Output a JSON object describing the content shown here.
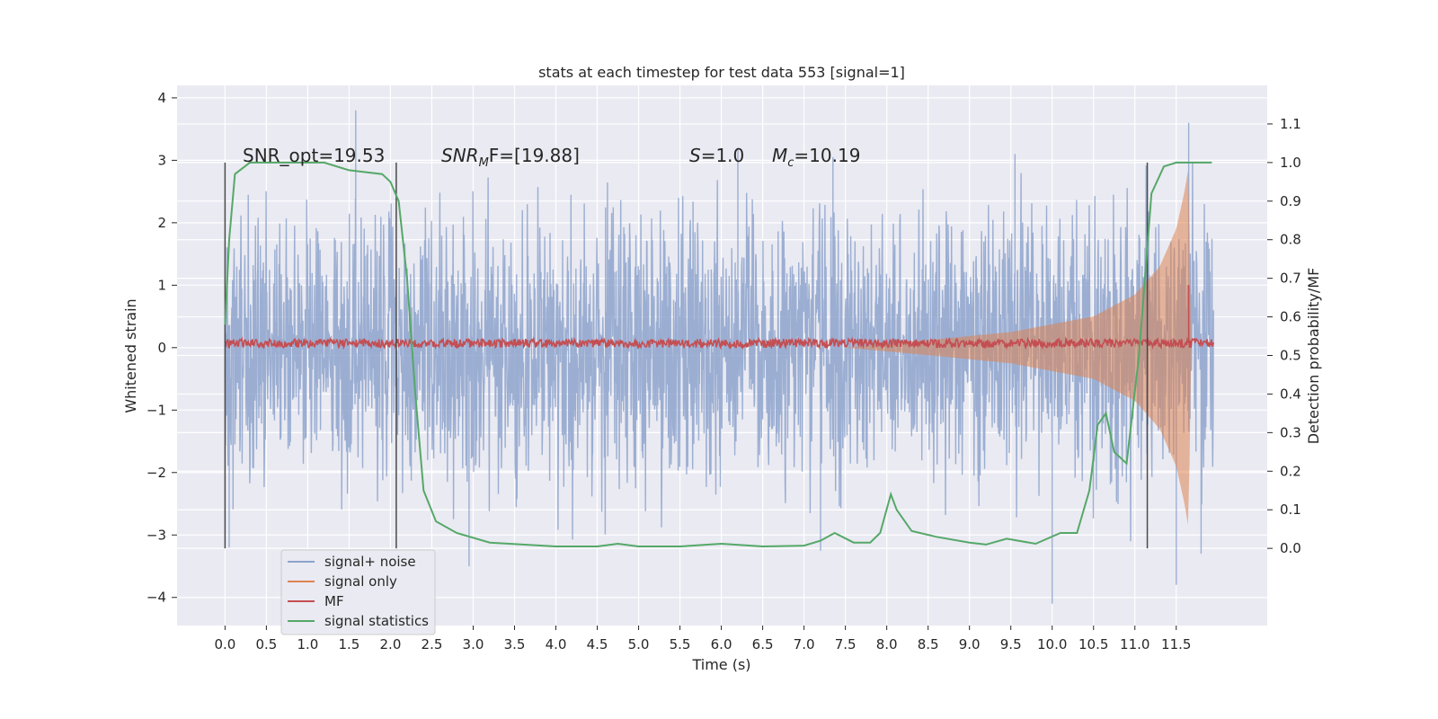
{
  "chart_data": {
    "type": "line",
    "title": "stats at each timestep for test data 553 [signal=1]",
    "xlabel": "Time (s)",
    "ylabel": "Whitened strain",
    "ylabel_right": "Detection probability/MF",
    "xlim": [
      -0.58,
      12.6
    ],
    "ylim": [
      -4.45,
      4.2
    ],
    "ylim_right": [
      -0.2,
      1.2
    ],
    "grid": true,
    "x_ticks": [
      "0.0",
      "0.5",
      "1.0",
      "1.5",
      "2.0",
      "2.5",
      "3.0",
      "3.5",
      "4.0",
      "4.5",
      "5.0",
      "5.5",
      "6.0",
      "6.5",
      "7.0",
      "7.5",
      "8.0",
      "8.5",
      "9.0",
      "9.5",
      "10.0",
      "10.5",
      "11.0",
      "11.5"
    ],
    "y_ticks": [
      "4",
      "3",
      "2",
      "1",
      "0",
      "−1",
      "−2",
      "−3",
      "−4"
    ],
    "y_ticks_right": [
      "1.1",
      "1.0",
      "0.9",
      "0.8",
      "0.7",
      "0.6",
      "0.5",
      "0.4",
      "0.3",
      "0.2",
      "0.1",
      "0.0"
    ],
    "annotations": {
      "snr_opt": "SNR_opt=19.53",
      "snr_mf_base": "SNR",
      "snr_mf_sub": "M",
      "snr_mf_rest": "F=[19.88]",
      "s_italic": "S",
      "s_value": "=1.0",
      "mc_base": "M",
      "mc_sub": "c",
      "mc_value": "=10.19"
    },
    "vertical_lines_x": [
      0.0,
      2.07,
      11.15
    ],
    "legend_placement": "lower-left",
    "series": [
      {
        "name": "signal+ noise",
        "color": "#8da3cd",
        "x_range": [
          0.0,
          11.95
        ],
        "envelope_typical": [
          -2.3,
          2.3
        ],
        "spikes": [
          [
            1.58,
            3.8
          ],
          [
            0.05,
            -3.2
          ],
          [
            2.95,
            -3.5
          ],
          [
            6.2,
            3.2
          ],
          [
            7.2,
            -3.25
          ],
          [
            7.35,
            3.05
          ],
          [
            9.55,
            3.1
          ],
          [
            10.0,
            -4.1
          ],
          [
            11.5,
            -3.8
          ],
          [
            11.65,
            3.6
          ],
          [
            11.8,
            -3.3
          ]
        ]
      },
      {
        "name": "signal only",
        "color": "#dd8452",
        "x_range": [
          7.5,
          11.68
        ],
        "amplitude_points": [
          [
            7.5,
            0.0
          ],
          [
            8.5,
            0.12
          ],
          [
            9.5,
            0.25
          ],
          [
            10.5,
            0.5
          ],
          [
            11.0,
            0.85
          ],
          [
            11.3,
            1.3
          ],
          [
            11.5,
            1.9
          ],
          [
            11.6,
            2.5
          ],
          [
            11.65,
            2.9
          ],
          [
            11.68,
            0.0
          ]
        ]
      },
      {
        "name": "MF",
        "color": "#c44e52",
        "x_range": [
          0.0,
          11.95
        ],
        "baseline": 0.07,
        "noise_amplitude": 0.07,
        "spike": [
          11.65,
          1.0
        ]
      },
      {
        "name": "signal statistics",
        "color": "#55a868",
        "axis": "right",
        "points": [
          [
            0.0,
            0.58
          ],
          [
            0.05,
            0.8
          ],
          [
            0.12,
            0.97
          ],
          [
            0.3,
            1.0
          ],
          [
            1.2,
            1.0
          ],
          [
            1.5,
            0.98
          ],
          [
            1.9,
            0.97
          ],
          [
            2.0,
            0.95
          ],
          [
            2.1,
            0.9
          ],
          [
            2.2,
            0.7
          ],
          [
            2.3,
            0.4
          ],
          [
            2.4,
            0.15
          ],
          [
            2.55,
            0.07
          ],
          [
            2.8,
            0.04
          ],
          [
            3.2,
            0.015
          ],
          [
            3.6,
            0.01
          ],
          [
            4.0,
            0.005
          ],
          [
            4.5,
            0.005
          ],
          [
            4.75,
            0.012
          ],
          [
            5.0,
            0.005
          ],
          [
            5.5,
            0.005
          ],
          [
            6.0,
            0.012
          ],
          [
            6.5,
            0.005
          ],
          [
            7.0,
            0.007
          ],
          [
            7.2,
            0.02
          ],
          [
            7.37,
            0.04
          ],
          [
            7.6,
            0.015
          ],
          [
            7.8,
            0.015
          ],
          [
            7.92,
            0.04
          ],
          [
            8.05,
            0.14
          ],
          [
            8.12,
            0.1
          ],
          [
            8.3,
            0.045
          ],
          [
            8.6,
            0.03
          ],
          [
            9.0,
            0.015
          ],
          [
            9.2,
            0.01
          ],
          [
            9.45,
            0.025
          ],
          [
            9.8,
            0.012
          ],
          [
            10.1,
            0.04
          ],
          [
            10.3,
            0.04
          ],
          [
            10.45,
            0.15
          ],
          [
            10.55,
            0.32
          ],
          [
            10.65,
            0.35
          ],
          [
            10.75,
            0.25
          ],
          [
            10.9,
            0.22
          ],
          [
            11.05,
            0.5
          ],
          [
            11.2,
            0.92
          ],
          [
            11.35,
            0.99
          ],
          [
            11.5,
            1.0
          ],
          [
            11.93,
            1.0
          ]
        ]
      }
    ]
  }
}
